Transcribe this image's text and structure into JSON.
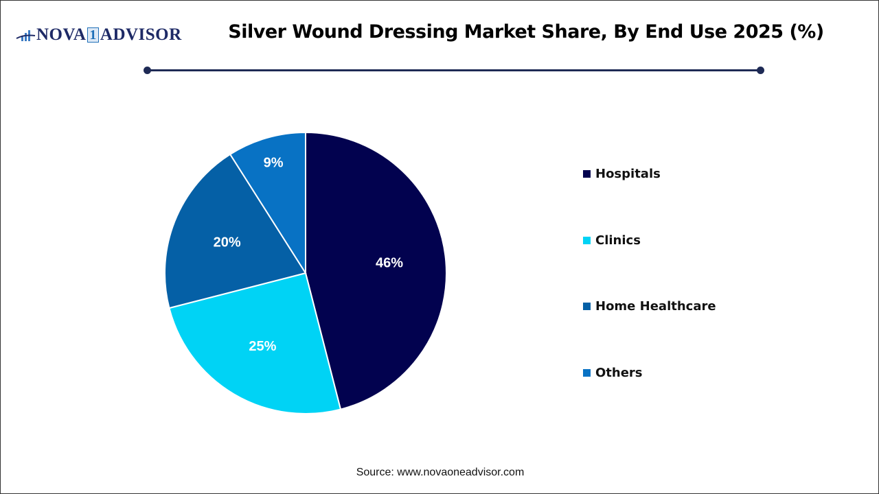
{
  "logo": {
    "text_left": "NOVA",
    "text_mid": "1",
    "text_right": "ADVISOR"
  },
  "header": {
    "title": "Silver Wound Dressing Market Share, By End Use 2025 (%)"
  },
  "footer": {
    "source": "Source: www.novaoneadvisor.com"
  },
  "chart_data": {
    "type": "pie",
    "title": "Silver Wound Dressing Market Share, By End Use 2025 (%)",
    "categories": [
      "Hospitals",
      "Clinics",
      "Home Healthcare",
      "Others"
    ],
    "values": [
      46,
      25,
      20,
      9
    ],
    "labels": [
      "46%",
      "25%",
      "20%",
      "9%"
    ],
    "colors": [
      "#02024f",
      "#00d3f5",
      "#0560a6",
      "#0872c4"
    ],
    "label_color": "#ffffff",
    "start": "top, clockwise",
    "legend": "right"
  }
}
